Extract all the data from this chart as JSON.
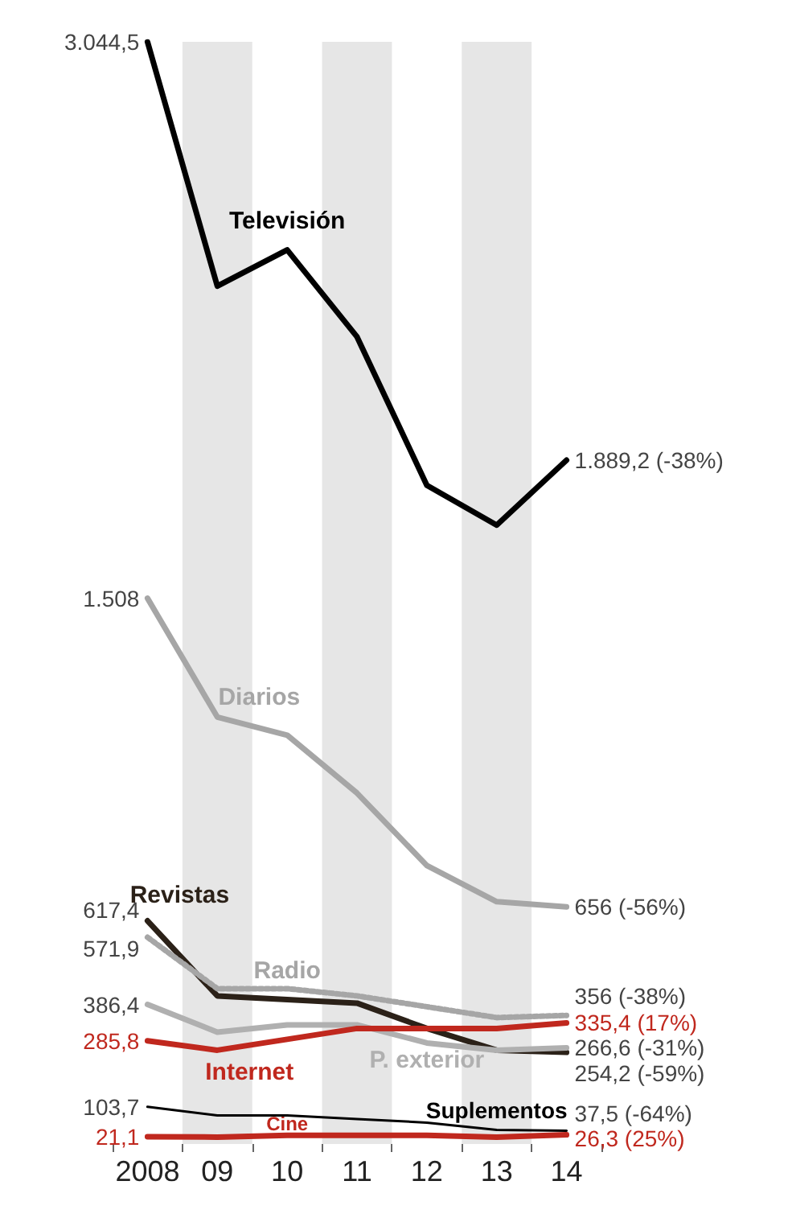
{
  "chart_data": {
    "type": "line",
    "categories": [
      "2008",
      "09",
      "10",
      "11",
      "12",
      "13",
      "14"
    ],
    "grid": false,
    "legend": false,
    "marker": "none",
    "bands": [
      {
        "axis": "x",
        "from": "09",
        "to": "09",
        "color": "#e6e6e6"
      },
      {
        "axis": "x",
        "from": "11",
        "to": "11",
        "color": "#e6e6e6"
      },
      {
        "axis": "x",
        "from": "13",
        "to": "13",
        "color": "#e6e6e6"
      }
    ],
    "series": [
      {
        "name": "Televisión",
        "color": "#000000",
        "values": [
          3044.5,
          2370,
          2470,
          2230,
          1820,
          1710,
          1889.2
        ],
        "value_labels": [
          "3.044,5",
          null,
          null,
          null,
          null,
          null,
          "1.889,2 (-38%)"
        ]
      },
      {
        "name": "Diarios",
        "color": "#a6a6a6",
        "values": [
          1508,
          1180,
          1130,
          970,
          770,
          670,
          656
        ],
        "value_labels": [
          "1.508",
          null,
          null,
          null,
          null,
          null,
          "656 (-56%)"
        ]
      },
      {
        "name": "Revistas",
        "color": "#2b2118",
        "values": [
          617.4,
          410,
          400,
          390,
          320,
          260,
          254.2
        ],
        "value_labels": [
          "617,4",
          null,
          null,
          null,
          null,
          null,
          "254,2 (-59%)"
        ]
      },
      {
        "name": "Radio",
        "color": "#a6a6a6",
        "line_style": "dotted",
        "values": [
          571.9,
          430,
          430,
          410,
          380,
          350,
          356
        ],
        "value_labels": [
          "571,9",
          null,
          null,
          null,
          null,
          null,
          "356 (-38%)"
        ]
      },
      {
        "name": "P. exterior",
        "color": "#b0b0b0",
        "values": [
          386.4,
          310,
          330,
          330,
          280,
          260,
          266.6
        ],
        "value_labels": [
          "386,4",
          null,
          null,
          null,
          null,
          null,
          "266,6 (-31%)"
        ]
      },
      {
        "name": "Internet",
        "color": "#c0281e",
        "values": [
          285.8,
          260,
          290,
          320,
          320,
          320,
          335.4
        ],
        "value_labels": [
          "285,8",
          null,
          null,
          null,
          null,
          null,
          "335,4 (17%)"
        ]
      },
      {
        "name": "Suplementos",
        "color": "#000000",
        "values": [
          103.7,
          80,
          80,
          70,
          60,
          40,
          37.5
        ],
        "value_labels": [
          "103,7",
          null,
          null,
          null,
          null,
          null,
          "37,5 (-64%)"
        ]
      },
      {
        "name": "Cine",
        "color": "#c0281e",
        "values": [
          21.1,
          20,
          25,
          25,
          25,
          20,
          26.3
        ],
        "value_labels": [
          "21,1",
          null,
          null,
          null,
          null,
          null,
          "26,3 (25%)"
        ]
      }
    ]
  }
}
